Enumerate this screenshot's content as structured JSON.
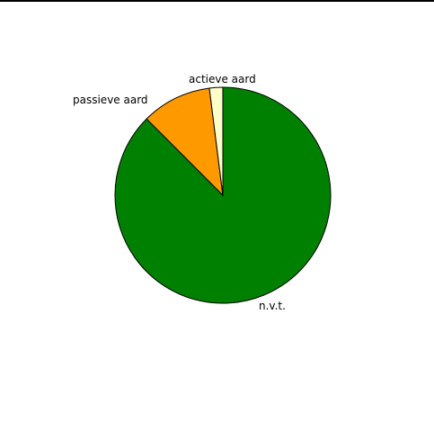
{
  "chart_data": {
    "type": "pie",
    "title": "",
    "slices": [
      {
        "label": "n.v.t.",
        "value": 87.5,
        "color": "#008000"
      },
      {
        "label": "passieve aard",
        "value": 10.5,
        "color": "#ff9900"
      },
      {
        "label": "actieve aard",
        "value": 2.0,
        "color": "#ffffcc"
      }
    ],
    "legend": "none",
    "labels": "outside-slices"
  }
}
